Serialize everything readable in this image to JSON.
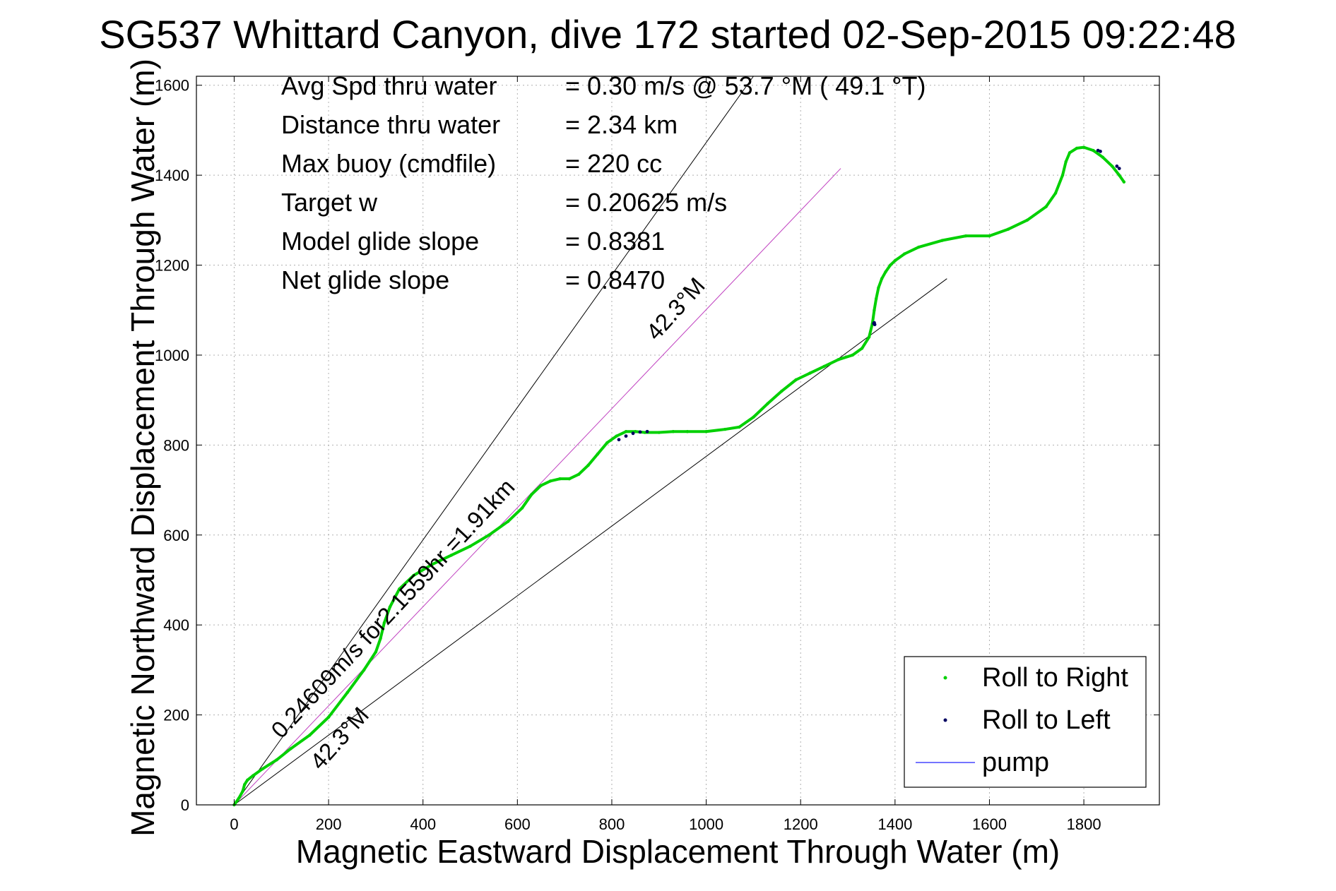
{
  "chart_data": {
    "type": "scatter",
    "title": "SG537 Whittard Canyon, dive 172 started 02-Sep-2015 09:22:48",
    "xlabel": "Magnetic Eastward Displacement Through Water (m)",
    "ylabel": "Magnetic Northward Displacement Through Water (m)",
    "xlim": [
      -80,
      1960
    ],
    "ylim": [
      0,
      1620
    ],
    "xticks": [
      0,
      200,
      400,
      600,
      800,
      1000,
      1200,
      1400,
      1600,
      1800
    ],
    "yticks": [
      0,
      200,
      400,
      600,
      800,
      1000,
      1200,
      1400,
      1600
    ],
    "grid": true,
    "info_lines": [
      {
        "label": "Avg Spd thru water",
        "value": "=  0.30 m/s @  53.7 °M ( 49.1 °T)"
      },
      {
        "label": "Distance thru water",
        "value": "=  2.34 km"
      },
      {
        "label": "Max buoy (cmdfile)",
        "value": "= 220 cc"
      },
      {
        "label": "Target w",
        "value": "= 0.20625 m/s"
      },
      {
        "label": "Model glide slope",
        "value": "= 0.8381"
      },
      {
        "label": "Net glide slope",
        "value": "= 0.8470"
      }
    ],
    "reference_lines": [
      {
        "name": "upper-bound",
        "color": "#000000",
        "x": [
          0,
          1100
        ],
        "y": [
          0,
          1620
        ]
      },
      {
        "name": "lower-bound",
        "color": "#000000",
        "x": [
          0,
          1510
        ],
        "y": [
          0,
          1170
        ]
      },
      {
        "name": "current-vector",
        "color": "#c040c0",
        "x": [
          0,
          1285
        ],
        "y": [
          0,
          1415
        ]
      }
    ],
    "annotations": [
      {
        "text": "42.3°M",
        "x": 895,
        "y": 1030,
        "angle": -48
      },
      {
        "text": "42.3°M",
        "x": 183,
        "y": 75,
        "angle": -48
      },
      {
        "text": "0.24609m/s for2.1559hr =1.91km",
        "x": 100,
        "y": 145,
        "angle": -47
      }
    ],
    "series": [
      {
        "name": "Roll to Right",
        "color": "#00d000",
        "x": [
          0,
          10,
          18,
          22,
          28,
          40,
          60,
          90,
          120,
          160,
          200,
          240,
          275,
          300,
          310,
          318,
          330,
          350,
          380,
          420,
          460,
          500,
          540,
          580,
          610,
          630,
          650,
          670,
          690,
          710,
          730,
          750,
          770,
          790,
          810,
          830,
          850,
          870,
          900,
          930,
          960,
          1000,
          1040,
          1070,
          1100,
          1130,
          1160,
          1190,
          1220,
          1250,
          1280,
          1310,
          1330,
          1345,
          1352,
          1356,
          1360,
          1365,
          1372,
          1380,
          1390,
          1400,
          1420,
          1450,
          1500,
          1550,
          1600,
          1640,
          1680,
          1720,
          1740,
          1755,
          1762,
          1770,
          1785,
          1800,
          1820,
          1840,
          1860,
          1875,
          1885
        ],
        "y": [
          0,
          15,
          30,
          45,
          55,
          65,
          80,
          100,
          125,
          155,
          195,
          250,
          300,
          340,
          370,
          405,
          440,
          480,
          510,
          535,
          555,
          575,
          600,
          630,
          660,
          690,
          710,
          720,
          725,
          725,
          735,
          755,
          780,
          805,
          820,
          830,
          830,
          828,
          828,
          830,
          830,
          830,
          835,
          840,
          862,
          892,
          920,
          945,
          960,
          975,
          990,
          1000,
          1015,
          1040,
          1070,
          1100,
          1125,
          1150,
          1170,
          1185,
          1200,
          1210,
          1225,
          1240,
          1255,
          1265,
          1265,
          1280,
          1300,
          1330,
          1360,
          1400,
          1430,
          1450,
          1460,
          1462,
          1455,
          1440,
          1420,
          1400,
          1385
        ]
      },
      {
        "name": "Roll to Left",
        "color": "#000060",
        "x": [
          815,
          830,
          845,
          860,
          875,
          1355,
          1356,
          1357,
          1830,
          1835,
          1870,
          1875
        ],
        "y": [
          812,
          820,
          826,
          829,
          830,
          1070,
          1072,
          1068,
          1455,
          1453,
          1420,
          1415
        ]
      }
    ],
    "legend": {
      "position": "bottom-right",
      "entries": [
        {
          "label": "Roll to Right",
          "marker": "dot",
          "color": "#00d000"
        },
        {
          "label": "Roll to Left",
          "marker": "dot",
          "color": "#000060"
        },
        {
          "label": "pump",
          "marker": "line",
          "color": "#2020ff"
        }
      ]
    }
  }
}
